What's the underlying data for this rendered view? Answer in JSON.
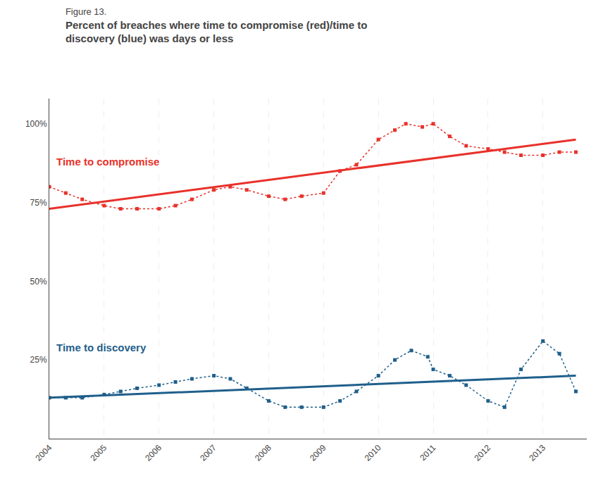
{
  "chart_data": {
    "type": "line",
    "subtitle": "Figure 13.",
    "title": [
      "Percent of breaches where time to compromise (red)/time to",
      "discovery (blue) was days or less"
    ],
    "series": [
      {
        "x": [
          2004,
          2004.3,
          2004.6,
          2005,
          2005.3,
          2005.6,
          2006,
          2006.3,
          2006.6,
          2007,
          2007.3,
          2007.6,
          2008,
          2008.3,
          2008.6,
          2009,
          2009.3,
          2009.6,
          2010,
          2010.3,
          2010.5,
          2010.8,
          2011,
          2011.3,
          2011.6,
          2012,
          2012.3,
          2012.6,
          2013,
          2013.3,
          2013.6
        ],
        "values": [
          80,
          78,
          76,
          74,
          73,
          73,
          73,
          74,
          76,
          79,
          80,
          79,
          77,
          76,
          77,
          78,
          85,
          87,
          95,
          98,
          100,
          99,
          100,
          96,
          93,
          92,
          91,
          90,
          90,
          91,
          91
        ],
        "color": "#e8312a",
        "line_style": "dotted",
        "marker": "square"
      },
      {
        "x": [
          2004,
          2013.6
        ],
        "values": [
          73,
          95
        ],
        "color": "#e8312a",
        "line_style": "solid"
      },
      {
        "x": [
          2004,
          2004.3,
          2004.6,
          2005,
          2005.3,
          2005.6,
          2006,
          2006.3,
          2006.6,
          2007,
          2007.3,
          2007.6,
          2008,
          2008.3,
          2008.6,
          2009,
          2009.3,
          2009.6,
          2010,
          2010.3,
          2010.6,
          2010.9,
          2011,
          2011.3,
          2011.6,
          2012,
          2012.3,
          2012.6,
          2013,
          2013.3,
          2013.6
        ],
        "values": [
          13,
          13,
          13,
          14,
          15,
          16,
          17,
          18,
          19,
          20,
          19,
          16,
          12,
          10,
          10,
          10,
          12,
          15,
          20,
          25,
          28,
          26,
          22,
          20,
          17,
          12,
          10,
          22,
          31,
          27,
          15
        ],
        "color": "#1f5f8b",
        "line_style": "dotted",
        "marker": "square"
      },
      {
        "x": [
          2004,
          2013.6
        ],
        "values": [
          13,
          20
        ],
        "color": "#1f5f8b",
        "line_style": "solid"
      }
    ],
    "annotations": [
      {
        "text": "Time to compromise",
        "x": 2004.1,
        "y": 88,
        "color": "#e8312a"
      },
      {
        "text": "Time to discovery",
        "x": 2004.1,
        "y": 29,
        "color": "#1f5f8b"
      }
    ],
    "xlim": [
      2004,
      2013.8
    ],
    "xticks": [
      2004,
      2005,
      2006,
      2007,
      2008,
      2009,
      2010,
      2011,
      2012,
      2013
    ],
    "ylim": [
      0,
      108
    ],
    "yticks": [
      {
        "value": 25,
        "label": "25%"
      },
      {
        "value": 50,
        "label": "50%"
      },
      {
        "value": 75,
        "label": "75%"
      },
      {
        "value": 100,
        "label": "100%"
      }
    ],
    "grid": "x"
  }
}
